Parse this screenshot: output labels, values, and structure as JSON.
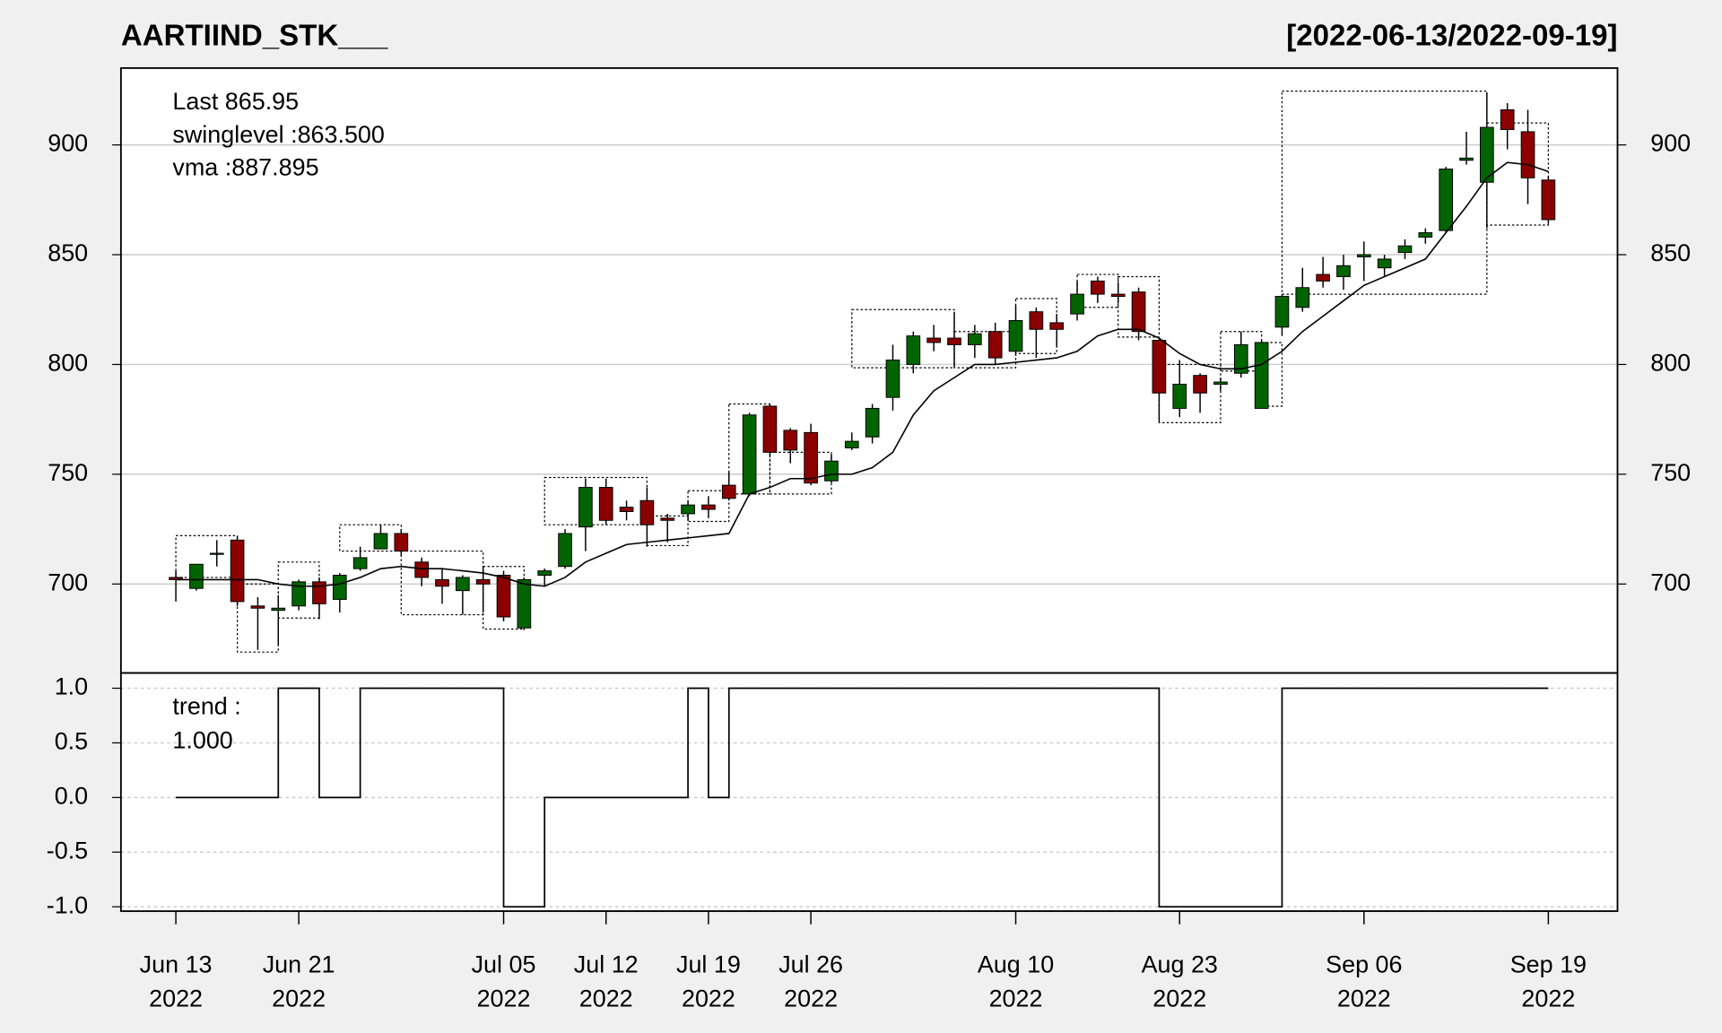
{
  "chart_data": [
    {
      "type": "candlestick",
      "title": "AARTIIND_STK___",
      "subtitle": "[2022-06-13/2022-09-19]",
      "legend": [
        "Last 865.95",
        "swinglevel :863.500",
        "vma :887.895"
      ],
      "legend_colors": [
        "#8b0000",
        "#000000",
        "#000000"
      ],
      "x": [
        "2022-06-13",
        "2022-06-14",
        "2022-06-15",
        "2022-06-16",
        "2022-06-17",
        "2022-06-20",
        "2022-06-21",
        "2022-06-22",
        "2022-06-23",
        "2022-06-24",
        "2022-06-27",
        "2022-06-28",
        "2022-06-29",
        "2022-06-30",
        "2022-07-01",
        "2022-07-04",
        "2022-07-05",
        "2022-07-06",
        "2022-07-07",
        "2022-07-08",
        "2022-07-11",
        "2022-07-12",
        "2022-07-13",
        "2022-07-14",
        "2022-07-15",
        "2022-07-18",
        "2022-07-19",
        "2022-07-20",
        "2022-07-21",
        "2022-07-22",
        "2022-07-25",
        "2022-07-26",
        "2022-07-27",
        "2022-07-28",
        "2022-07-29",
        "2022-08-01",
        "2022-08-02",
        "2022-08-03",
        "2022-08-04",
        "2022-08-05",
        "2022-08-08",
        "2022-08-10",
        "2022-08-11",
        "2022-08-12",
        "2022-08-16",
        "2022-08-17",
        "2022-08-18",
        "2022-08-19",
        "2022-08-22",
        "2022-08-23",
        "2022-08-24",
        "2022-08-25",
        "2022-08-26",
        "2022-08-29",
        "2022-08-30",
        "2022-09-01",
        "2022-09-02",
        "2022-09-05",
        "2022-09-06",
        "2022-09-07",
        "2022-09-08",
        "2022-09-09",
        "2022-09-12",
        "2022-09-13",
        "2022-09-14",
        "2022-09-15",
        "2022-09-16",
        "2022-09-19"
      ],
      "open": [
        703,
        698,
        713.5,
        720,
        690,
        688,
        690,
        701,
        693,
        707,
        716,
        723,
        710,
        702,
        697,
        702,
        704,
        680,
        704,
        708,
        726,
        744,
        735,
        738,
        730,
        732,
        736,
        745,
        741,
        781,
        770,
        769,
        747,
        762,
        767,
        785,
        800,
        812,
        812,
        809,
        815,
        806,
        824,
        819,
        823,
        838,
        832,
        833,
        811,
        780,
        795,
        791,
        796,
        780,
        817,
        826,
        841,
        840,
        849,
        844,
        851,
        858,
        861,
        893,
        883,
        916,
        906,
        884
      ],
      "high": [
        706,
        709,
        720,
        722,
        694,
        695,
        702,
        703,
        705,
        717,
        727,
        725,
        712,
        707,
        704,
        708,
        706,
        703,
        707,
        725,
        748,
        748,
        738,
        744,
        732,
        738,
        740,
        751,
        778,
        782,
        771,
        773,
        759,
        769,
        782,
        809,
        815,
        818,
        824,
        818,
        819,
        827,
        826,
        823,
        838,
        840,
        837,
        835,
        812,
        802,
        796,
        794,
        815,
        811,
        832,
        844,
        849,
        850,
        856,
        850,
        857,
        862,
        890,
        906,
        924,
        919,
        916,
        886
      ],
      "low": [
        692,
        697,
        708,
        690,
        670,
        672,
        688,
        684,
        687,
        706,
        716,
        713,
        699,
        691,
        686,
        687,
        683,
        679,
        699,
        707,
        715,
        727,
        729,
        717,
        719,
        729,
        730,
        738,
        740,
        758,
        755,
        745,
        746,
        761,
        764,
        779,
        796,
        806,
        799,
        803,
        800,
        804,
        803,
        808,
        820,
        828,
        828,
        811,
        774,
        776,
        778,
        788,
        794,
        780,
        813,
        824,
        835,
        834,
        838,
        840,
        848,
        855,
        860,
        891,
        862,
        898,
        873,
        864
      ],
      "close": [
        702,
        709,
        714,
        692,
        689,
        689,
        701,
        691,
        704,
        712,
        723,
        715,
        703,
        699,
        703,
        700,
        685,
        702,
        706,
        723,
        744,
        729,
        733,
        727,
        729,
        736,
        734,
        739,
        777,
        760,
        761,
        746,
        756,
        765,
        780,
        802,
        813,
        810,
        809,
        814,
        803,
        820,
        816,
        816,
        832,
        832,
        831,
        815,
        787,
        791,
        787,
        792,
        809,
        810,
        831,
        835,
        838,
        845,
        850,
        848,
        854,
        860,
        889,
        894,
        908,
        907,
        885,
        865.95
      ],
      "up_color": "#006400",
      "down_color": "#8b0000",
      "series": [
        {
          "name": "vma",
          "color": "#000000",
          "values": [
            702,
            702,
            702,
            702,
            702,
            700,
            699,
            699,
            700,
            703,
            707,
            708,
            707,
            707,
            706,
            705,
            703,
            700,
            699,
            703,
            710,
            714,
            718,
            719,
            720,
            721,
            722,
            723,
            741,
            744,
            748,
            748,
            750,
            750,
            753,
            760,
            777,
            788,
            794,
            800,
            800,
            801,
            802,
            803,
            806,
            813,
            816,
            816,
            812,
            805,
            800,
            798,
            798,
            800,
            806,
            815,
            822,
            829,
            836,
            840,
            844,
            848,
            860,
            872,
            885,
            892,
            891,
            887.895
          ]
        }
      ],
      "boxes": [
        {
          "start": "2022-06-13",
          "end": "2022-06-16",
          "low": 703,
          "high": 722
        },
        {
          "start": "2022-06-16",
          "end": "2022-06-20",
          "low": 669,
          "high": 700
        },
        {
          "start": "2022-06-20",
          "end": "2022-06-22",
          "low": 684.5,
          "high": 710
        },
        {
          "start": "2022-06-23",
          "end": "2022-06-28",
          "low": 715,
          "high": 727
        },
        {
          "start": "2022-06-28",
          "end": "2022-07-04",
          "low": 686,
          "high": 715
        },
        {
          "start": "2022-07-04",
          "end": "2022-07-06",
          "low": 679.5,
          "high": 708
        },
        {
          "start": "2022-07-07",
          "end": "2022-07-14",
          "low": 727,
          "high": 748.5
        },
        {
          "start": "2022-07-14",
          "end": "2022-07-18",
          "low": 717.5,
          "high": 731
        },
        {
          "start": "2022-07-18",
          "end": "2022-07-20",
          "low": 728.5,
          "high": 742.5
        },
        {
          "start": "2022-07-20",
          "end": "2022-07-22",
          "low": 741,
          "high": 782
        },
        {
          "start": "2022-07-22",
          "end": "2022-07-27",
          "low": 741,
          "high": 760
        },
        {
          "start": "2022-07-28",
          "end": "2022-08-04",
          "low": 798.5,
          "high": 825
        },
        {
          "start": "2022-08-04",
          "end": "2022-08-10",
          "low": 798.5,
          "high": 815
        },
        {
          "start": "2022-08-10",
          "end": "2022-08-12",
          "low": 805,
          "high": 830
        },
        {
          "start": "2022-08-16",
          "end": "2022-08-18",
          "low": 826,
          "high": 841
        },
        {
          "start": "2022-08-18",
          "end": "2022-08-22",
          "low": 812.5,
          "high": 840
        },
        {
          "start": "2022-08-22",
          "end": "2022-08-25",
          "low": 773.5,
          "high": 800
        },
        {
          "start": "2022-08-25",
          "end": "2022-08-29",
          "low": 797,
          "high": 815
        },
        {
          "start": "2022-08-29",
          "end": "2022-08-30",
          "low": 781,
          "high": 810
        },
        {
          "start": "2022-08-30",
          "end": "2022-09-14",
          "low": 832,
          "high": 924.5
        },
        {
          "start": "2022-09-14",
          "end": "2022-09-19",
          "low": 863.5,
          "high": 910
        }
      ],
      "ylim": [
        659.5,
        935
      ],
      "yticks": [
        700,
        750,
        800,
        850,
        900
      ],
      "grid": true
    },
    {
      "type": "step",
      "legend": [
        "trend :",
        "1.000"
      ],
      "x": [
        "2022-06-13",
        "2022-06-14",
        "2022-06-15",
        "2022-06-16",
        "2022-06-17",
        "2022-06-20",
        "2022-06-21",
        "2022-06-22",
        "2022-06-23",
        "2022-06-24",
        "2022-06-27",
        "2022-06-28",
        "2022-06-29",
        "2022-06-30",
        "2022-07-01",
        "2022-07-04",
        "2022-07-05",
        "2022-07-06",
        "2022-07-07",
        "2022-07-08",
        "2022-07-11",
        "2022-07-12",
        "2022-07-13",
        "2022-07-14",
        "2022-07-15",
        "2022-07-18",
        "2022-07-19",
        "2022-07-20",
        "2022-07-21",
        "2022-07-22",
        "2022-07-25",
        "2022-07-26",
        "2022-07-27",
        "2022-07-28",
        "2022-07-29",
        "2022-08-01",
        "2022-08-02",
        "2022-08-03",
        "2022-08-04",
        "2022-08-05",
        "2022-08-08",
        "2022-08-10",
        "2022-08-11",
        "2022-08-12",
        "2022-08-16",
        "2022-08-17",
        "2022-08-18",
        "2022-08-19",
        "2022-08-22",
        "2022-08-23",
        "2022-08-24",
        "2022-08-25",
        "2022-08-26",
        "2022-08-29",
        "2022-08-30",
        "2022-09-01",
        "2022-09-02",
        "2022-09-05",
        "2022-09-06",
        "2022-09-07",
        "2022-09-08",
        "2022-09-09",
        "2022-09-12",
        "2022-09-13",
        "2022-09-14",
        "2022-09-15",
        "2022-09-16",
        "2022-09-19"
      ],
      "series": [
        {
          "name": "trend",
          "color": "#000000",
          "values": [
            0,
            0,
            0,
            0,
            0,
            1,
            1,
            0,
            0,
            1,
            1,
            1,
            1,
            1,
            1,
            1,
            -1,
            -1,
            0,
            0,
            0,
            0,
            0,
            0,
            0,
            1,
            0,
            1,
            1,
            1,
            1,
            1,
            1,
            1,
            1,
            1,
            1,
            1,
            1,
            1,
            1,
            1,
            1,
            1,
            1,
            1,
            1,
            1,
            -1,
            -1,
            -1,
            -1,
            -1,
            -1,
            1,
            1,
            1,
            1,
            1,
            1,
            1,
            1,
            1,
            1,
            1,
            1,
            1,
            1
          ]
        }
      ],
      "ylim": [
        -1.04,
        1.14
      ],
      "yticks": [
        {
          "value": 1,
          "label": "1.0"
        },
        {
          "value": 0.5,
          "label": "0.5"
        },
        {
          "value": 0,
          "label": "0.0"
        },
        {
          "value": -0.5,
          "label": "-0.5"
        },
        {
          "value": -1,
          "label": "-1.0"
        }
      ],
      "grid": true,
      "xticks": [
        {
          "value": "2022-06-13",
          "label": [
            "Jun 13",
            "2022"
          ]
        },
        {
          "value": "2022-06-21",
          "label": [
            "Jun 21",
            "2022"
          ]
        },
        {
          "value": "2022-07-05",
          "label": [
            "Jul 05",
            "2022"
          ]
        },
        {
          "value": "2022-07-12",
          "label": [
            "Jul 12",
            "2022"
          ]
        },
        {
          "value": "2022-07-19",
          "label": [
            "Jul 19",
            "2022"
          ]
        },
        {
          "value": "2022-07-26",
          "label": [
            "Jul 26",
            "2022"
          ]
        },
        {
          "value": "2022-08-10",
          "label": [
            "Aug 10",
            "2022"
          ]
        },
        {
          "value": "2022-08-23",
          "label": [
            "Aug 23",
            "2022"
          ]
        },
        {
          "value": "2022-09-06",
          "label": [
            "Sep 06",
            "2022"
          ]
        },
        {
          "value": "2022-09-19",
          "label": [
            "Sep 19",
            "2022"
          ]
        }
      ]
    }
  ]
}
